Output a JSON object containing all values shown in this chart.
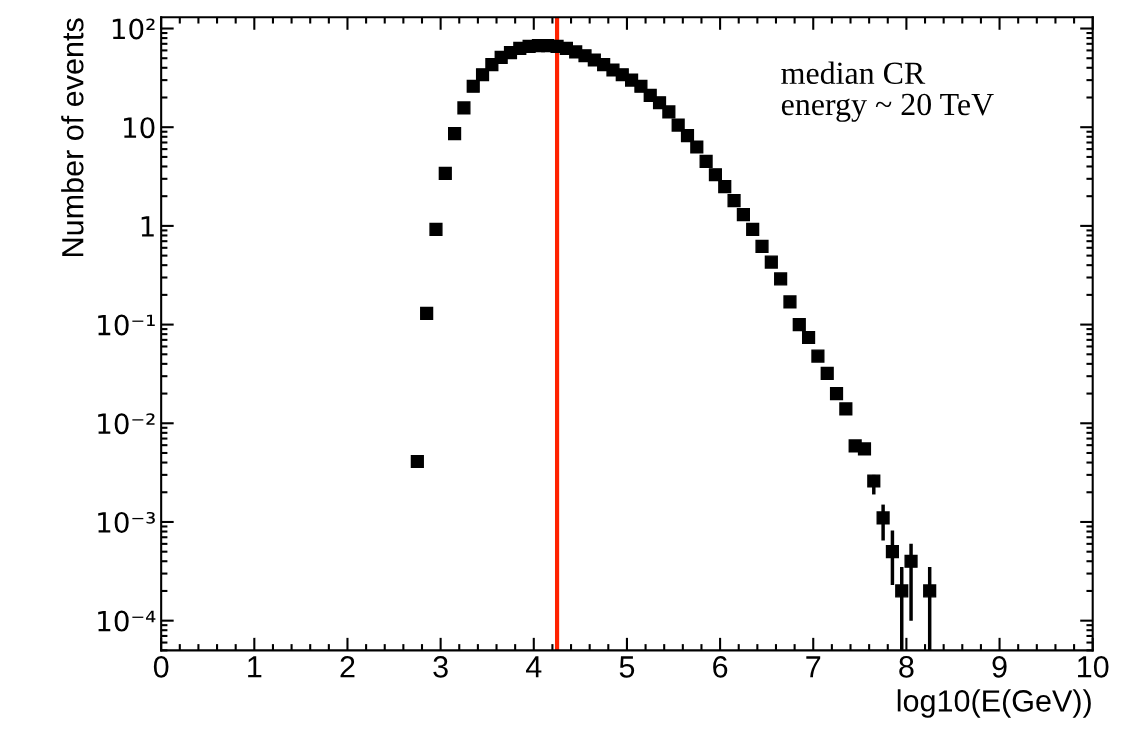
{
  "chart_data": {
    "type": "scatter",
    "xlabel": "log10(E(GeV))",
    "ylabel": "Number of events",
    "log": "y",
    "grid": false,
    "marker": "square",
    "xlim": [
      0,
      10
    ],
    "xticks": [
      0,
      1,
      2,
      3,
      4,
      5,
      6,
      7,
      8,
      9,
      10
    ],
    "ylim": [
      5e-05,
      130
    ],
    "yticks": [
      {
        "value": 0.0001,
        "label": "10⁻⁴"
      },
      {
        "value": 0.001,
        "label": "10⁻³"
      },
      {
        "value": 0.01,
        "label": "10⁻²"
      },
      {
        "value": 0.1,
        "label": "10⁻¹"
      },
      1,
      10,
      {
        "value": 100,
        "label": "10²"
      }
    ],
    "series": [
      {
        "color": "#000000",
        "x": [
          2.75,
          2.85,
          2.95,
          3.05,
          3.15,
          3.25,
          3.35,
          3.45,
          3.55,
          3.65,
          3.75,
          3.85,
          3.95,
          4.05,
          4.15,
          4.25,
          4.35,
          4.45,
          4.55,
          4.65,
          4.75,
          4.85,
          4.95,
          5.05,
          5.15,
          5.25,
          5.35,
          5.45,
          5.55,
          5.65,
          5.75,
          5.85,
          5.95,
          6.05,
          6.15,
          6.25,
          6.35,
          6.45,
          6.55,
          6.65,
          6.75,
          6.85,
          6.95,
          7.05,
          7.15,
          7.25,
          7.35,
          7.45,
          7.55,
          7.65,
          7.75,
          7.85,
          7.95,
          8.05,
          8.25
        ],
        "values": [
          0.0041,
          0.13,
          0.92,
          3.4,
          8.6,
          15.7,
          26,
          34,
          43,
          51,
          57,
          63,
          66,
          67,
          67,
          66,
          63,
          58,
          53,
          48,
          43,
          38,
          34,
          30,
          26,
          21,
          17.7,
          14.3,
          10.5,
          8.2,
          6.3,
          4.5,
          3.3,
          2.5,
          1.8,
          1.3,
          0.92,
          0.62,
          0.43,
          0.29,
          0.17,
          0.1,
          0.074,
          0.048,
          0.032,
          0.02,
          0.014,
          0.0059,
          0.0055,
          0.0026,
          0.0011,
          0.0005,
          0.0002,
          0.0004,
          0.0002
        ],
        "errors": [
          null,
          null,
          null,
          null,
          null,
          null,
          null,
          null,
          null,
          null,
          null,
          null,
          null,
          null,
          null,
          null,
          null,
          null,
          null,
          null,
          null,
          null,
          null,
          null,
          null,
          null,
          null,
          null,
          null,
          null,
          null,
          null,
          null,
          null,
          null,
          null,
          null,
          null,
          null,
          null,
          null,
          null,
          null,
          null,
          null,
          null,
          null,
          null,
          null,
          [
            0.0019,
            0.003
          ],
          [
            0.00065,
            0.0015
          ],
          [
            0.00023,
            0.00082
          ],
          [
            5e-05,
            0.00035
          ],
          [
            0.0001,
            0.0006
          ],
          [
            5e-05,
            0.00035
          ]
        ]
      }
    ],
    "ref_lines": [
      {
        "axis": "x",
        "value": 4.25,
        "color": "#ff2200"
      }
    ],
    "annotations": [
      "median CR\nenergy ~ 20 TeV"
    ]
  }
}
